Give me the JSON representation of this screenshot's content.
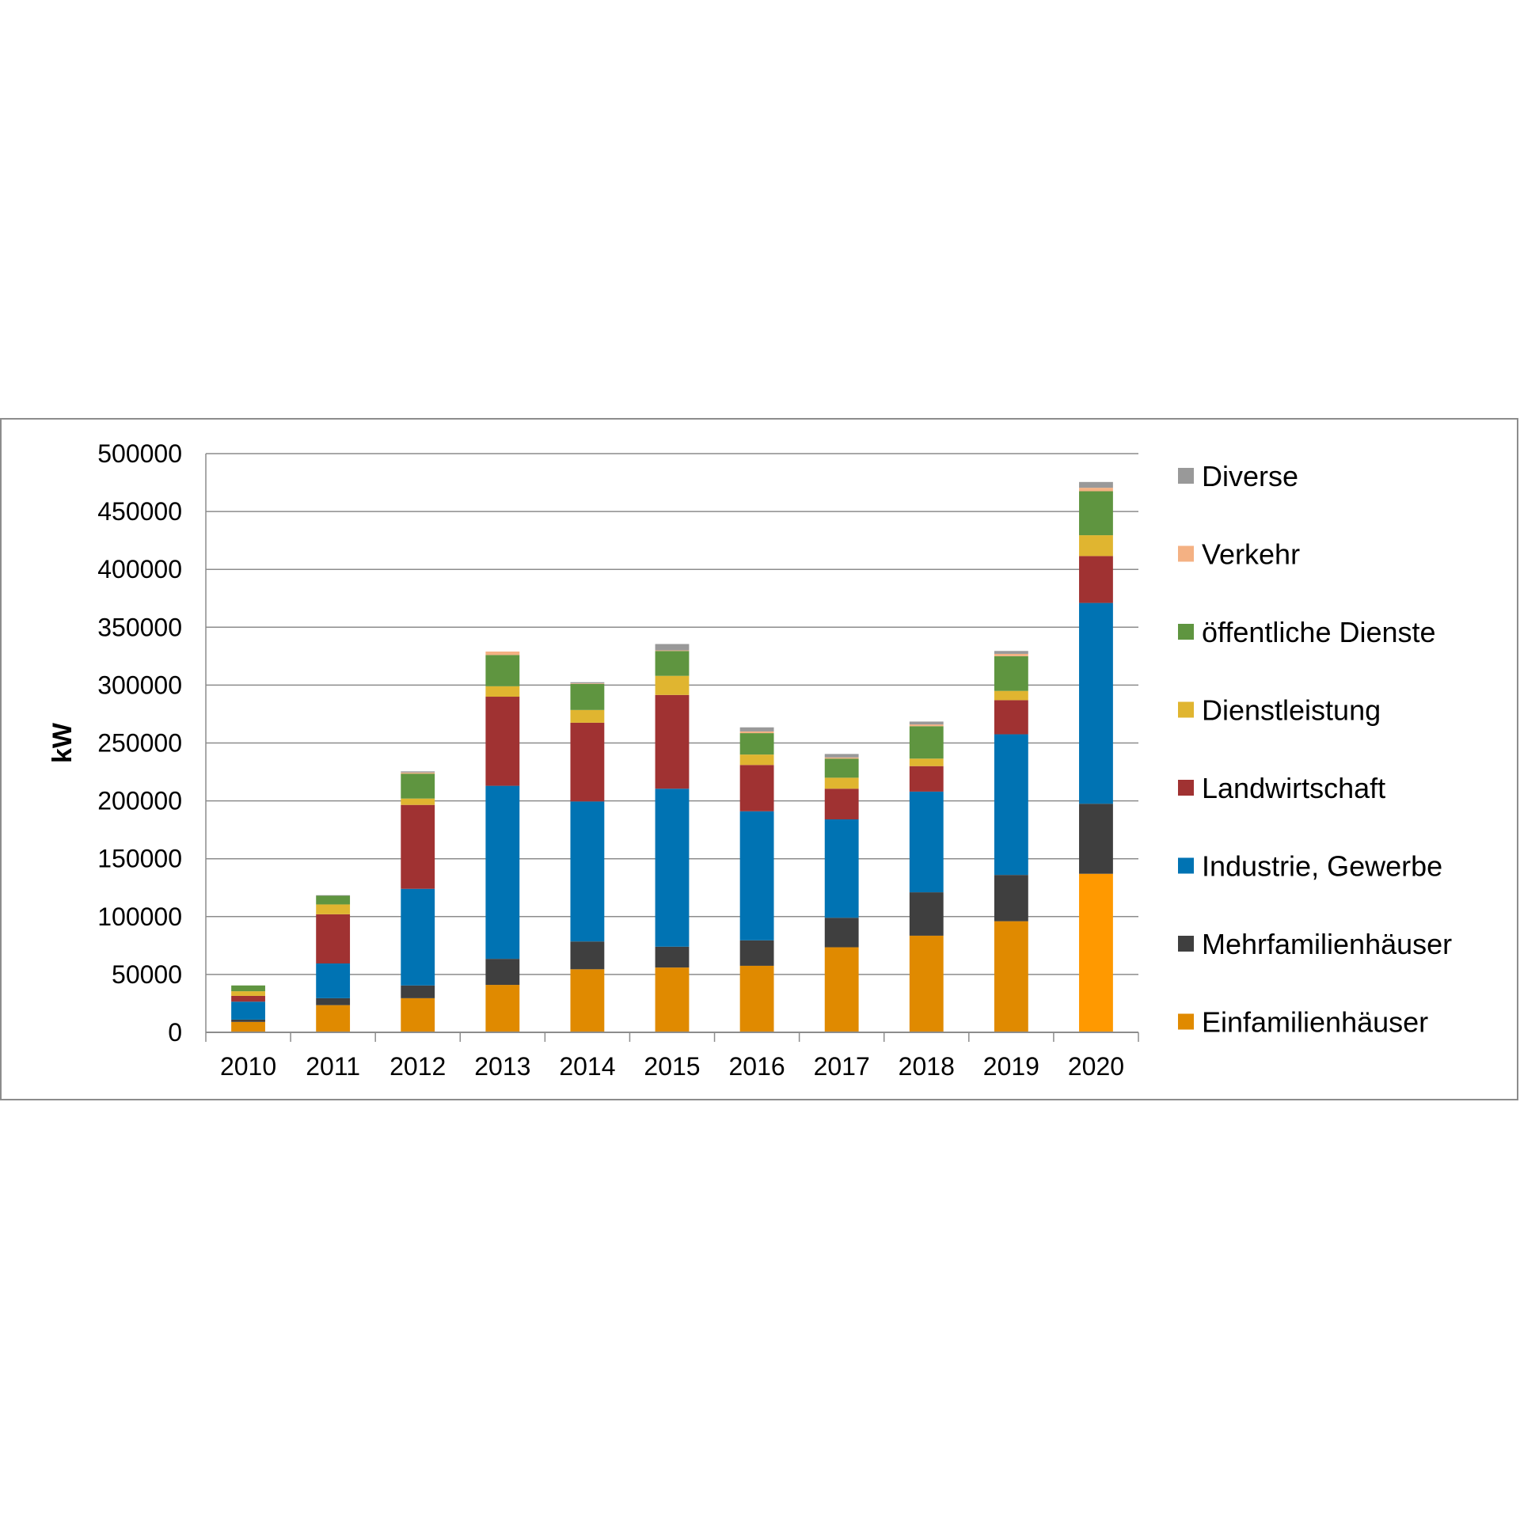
{
  "chart_data": {
    "type": "bar",
    "stacked": true,
    "title": "",
    "xlabel": "",
    "ylabel": "kW",
    "ylim": [
      0,
      500000
    ],
    "yticks": [
      "0",
      "50000",
      "100000",
      "150000",
      "200000",
      "250000",
      "300000",
      "350000",
      "400000",
      "450000",
      "500000"
    ],
    "grid": true,
    "legend_position": "right",
    "categories": [
      "2010",
      "2011",
      "2012",
      "2013",
      "2014",
      "2015",
      "2016",
      "2017",
      "2018",
      "2019",
      "2020"
    ],
    "series": [
      {
        "name": "Einfamilienhäuser",
        "color": "#e08a00",
        "values": [
          9000,
          23500,
          29500,
          41000,
          54500,
          56000,
          57500,
          73500,
          83500,
          96000,
          137000
        ]
      },
      {
        "name": "Mehrfamilienhäuser",
        "color": "#3f3f3f",
        "values": [
          2000,
          6000,
          11000,
          22500,
          24000,
          18000,
          22000,
          25500,
          37500,
          40000,
          60500
        ]
      },
      {
        "name": "Industrie, Gewerbe",
        "color": "#0073b3",
        "values": [
          15500,
          30000,
          83500,
          149500,
          121000,
          136500,
          111500,
          85000,
          87000,
          121500,
          173500
        ]
      },
      {
        "name": "Landwirtschaft",
        "color": "#a03232",
        "values": [
          5000,
          42500,
          72500,
          77000,
          68000,
          81000,
          40000,
          26500,
          22000,
          29500,
          40500
        ]
      },
      {
        "name": "Dienstleistung",
        "color": "#e0b530",
        "values": [
          4000,
          8500,
          5500,
          9000,
          11000,
          16500,
          9000,
          9500,
          6500,
          8000,
          18000
        ]
      },
      {
        "name": "öffentliche Dienste",
        "color": "#5f9540",
        "values": [
          5000,
          7500,
          21500,
          27000,
          22500,
          21500,
          18500,
          16500,
          28000,
          30000,
          38000
        ]
      },
      {
        "name": "Verkehr",
        "color": "#f4b183",
        "values": [
          0,
          0,
          1000,
          3000,
          500,
          500,
          1500,
          1000,
          1500,
          2000,
          3000
        ]
      },
      {
        "name": "Diverse",
        "color": "#999999",
        "values": [
          0,
          500,
          1000,
          0,
          1000,
          5500,
          3500,
          3000,
          2500,
          2500,
          5000
        ]
      }
    ],
    "legend_order": [
      "Diverse",
      "Verkehr",
      "öffentliche Dienste",
      "Dienstleistung",
      "Landwirtschaft",
      "Industrie, Gewerbe",
      "Mehrfamilienhäuser",
      "Einfamilienhäuser"
    ]
  }
}
